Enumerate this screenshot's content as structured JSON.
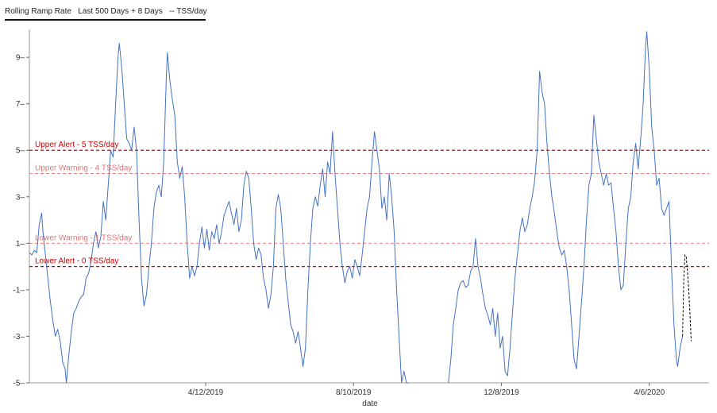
{
  "title": "Rolling Ramp Rate   Last 500 Days + 8 Days   -- TSS/day",
  "chart_data": {
    "type": "line",
    "title": "Rolling Ramp Rate   Last 500 Days + 8 Days   -- TSS/day",
    "xlabel": "date",
    "ylabel": "",
    "ylim": [
      -5,
      10.2
    ],
    "y_ticks": [
      -5,
      -3,
      -1,
      1,
      3,
      5,
      7,
      9
    ],
    "y_tick_labels": [
      "-5",
      "-3",
      "-1",
      "1",
      "3",
      "5",
      "7",
      "9"
    ],
    "x_ticks": [
      {
        "label": "4/12/2019",
        "day": 138
      },
      {
        "label": "8/10/2019",
        "day": 258
      },
      {
        "label": "12/8/2019",
        "day": 378
      },
      {
        "label": "4/6/2020",
        "day": 498
      }
    ],
    "xlim_days": [
      -5,
      513
    ],
    "grid": false,
    "thresholds": [
      {
        "name": "Upper Alert - 5 TSS/day",
        "value": 5,
        "color": "#cc0000",
        "style": "dashed-bold"
      },
      {
        "name": "Upper Warning - 4 TSS/day",
        "value": 4,
        "color": "#e57373",
        "style": "dashed"
      },
      {
        "name": "Lower Warning - 1 TSS/day",
        "value": 1,
        "color": "#e57373",
        "style": "dashed"
      },
      {
        "name": "Lower Alert - 0 TSS/day",
        "value": 0,
        "color": "#cc0000",
        "style": "dashed-bold"
      }
    ],
    "series": [
      {
        "name": "",
        "color": "#4472c4",
        "style": "solid",
        "points": [
          [
            -5,
            0.6
          ],
          [
            -3,
            0.5
          ],
          [
            -1,
            0.7
          ],
          [
            1,
            0.6
          ],
          [
            3,
            1.8
          ],
          [
            5,
            2.3
          ],
          [
            6,
            1.5
          ],
          [
            8,
            0.5
          ],
          [
            10,
            -0.5
          ],
          [
            12,
            -1.5
          ],
          [
            14,
            -2.3
          ],
          [
            16,
            -3.0
          ],
          [
            18,
            -2.7
          ],
          [
            20,
            -3.2
          ],
          [
            22,
            -4.1
          ],
          [
            24,
            -4.4
          ],
          [
            25,
            -5.0
          ],
          [
            27,
            -3.8
          ],
          [
            29,
            -2.8
          ],
          [
            31,
            -2.0
          ],
          [
            33,
            -1.8
          ],
          [
            35,
            -1.5
          ],
          [
            37,
            -1.3
          ],
          [
            39,
            -1.2
          ],
          [
            41,
            -0.5
          ],
          [
            43,
            -0.3
          ],
          [
            45,
            0.2
          ],
          [
            47,
            1.0
          ],
          [
            49,
            1.5
          ],
          [
            51,
            0.8
          ],
          [
            53,
            1.3
          ],
          [
            55,
            2.8
          ],
          [
            57,
            2.0
          ],
          [
            59,
            3.5
          ],
          [
            61,
            5.0
          ],
          [
            63,
            4.7
          ],
          [
            65,
            7.0
          ],
          [
            67,
            9.1
          ],
          [
            68,
            9.6
          ],
          [
            70,
            8.5
          ],
          [
            72,
            7.0
          ],
          [
            74,
            5.5
          ],
          [
            76,
            5.3
          ],
          [
            78,
            5.0
          ],
          [
            80,
            6.0
          ],
          [
            82,
            5.0
          ],
          [
            84,
            2.0
          ],
          [
            86,
            -0.5
          ],
          [
            88,
            -1.7
          ],
          [
            90,
            -1.2
          ],
          [
            92,
            0.0
          ],
          [
            94,
            1.0
          ],
          [
            96,
            2.5
          ],
          [
            98,
            3.2
          ],
          [
            100,
            3.5
          ],
          [
            102,
            3.0
          ],
          [
            104,
            4.5
          ],
          [
            106,
            8.0
          ],
          [
            107,
            9.2
          ],
          [
            109,
            8.0
          ],
          [
            111,
            7.2
          ],
          [
            113,
            6.5
          ],
          [
            115,
            4.5
          ],
          [
            117,
            3.8
          ],
          [
            119,
            4.3
          ],
          [
            121,
            3.0
          ],
          [
            123,
            1.0
          ],
          [
            125,
            -0.5
          ],
          [
            127,
            0.0
          ],
          [
            129,
            -0.4
          ],
          [
            131,
            0.0
          ],
          [
            133,
            1.0
          ],
          [
            135,
            1.7
          ],
          [
            137,
            0.8
          ],
          [
            139,
            1.6
          ],
          [
            141,
            0.7
          ],
          [
            143,
            1.5
          ],
          [
            145,
            1.2
          ],
          [
            147,
            1.8
          ],
          [
            149,
            1.0
          ],
          [
            151,
            1.5
          ],
          [
            153,
            2.2
          ],
          [
            155,
            2.5
          ],
          [
            157,
            2.8
          ],
          [
            159,
            2.3
          ],
          [
            161,
            1.8
          ],
          [
            163,
            2.5
          ],
          [
            165,
            1.5
          ],
          [
            167,
            2.0
          ],
          [
            169,
            3.5
          ],
          [
            171,
            4.1
          ],
          [
            173,
            3.8
          ],
          [
            175,
            2.5
          ],
          [
            177,
            1.0
          ],
          [
            179,
            0.3
          ],
          [
            181,
            0.8
          ],
          [
            183,
            0.5
          ],
          [
            185,
            -0.5
          ],
          [
            187,
            -1.0
          ],
          [
            189,
            -1.8
          ],
          [
            191,
            -1.2
          ],
          [
            193,
            0.0
          ],
          [
            195,
            2.5
          ],
          [
            197,
            3.1
          ],
          [
            199,
            2.5
          ],
          [
            201,
            1.0
          ],
          [
            203,
            -0.5
          ],
          [
            205,
            -1.5
          ],
          [
            207,
            -2.5
          ],
          [
            209,
            -2.8
          ],
          [
            211,
            -3.3
          ],
          [
            213,
            -2.8
          ],
          [
            215,
            -3.5
          ],
          [
            217,
            -4.3
          ],
          [
            219,
            -3.5
          ],
          [
            221,
            -1.0
          ],
          [
            223,
            1.0
          ],
          [
            225,
            2.5
          ],
          [
            227,
            3.0
          ],
          [
            229,
            2.6
          ],
          [
            231,
            3.5
          ],
          [
            233,
            4.2
          ],
          [
            235,
            3.0
          ],
          [
            237,
            4.5
          ],
          [
            239,
            4.0
          ],
          [
            241,
            5.8
          ],
          [
            243,
            4.0
          ],
          [
            245,
            2.5
          ],
          [
            247,
            1.0
          ],
          [
            249,
            0.0
          ],
          [
            251,
            -0.7
          ],
          [
            253,
            -0.2
          ],
          [
            255,
            0.0
          ],
          [
            257,
            -0.5
          ],
          [
            259,
            0.3
          ],
          [
            261,
            0.0
          ],
          [
            263,
            -0.4
          ],
          [
            265,
            0.5
          ],
          [
            267,
            1.5
          ],
          [
            269,
            2.5
          ],
          [
            271,
            3.0
          ],
          [
            273,
            4.5
          ],
          [
            275,
            5.8
          ],
          [
            277,
            5.0
          ],
          [
            279,
            4.2
          ],
          [
            281,
            2.5
          ],
          [
            283,
            3.0
          ],
          [
            285,
            2.0
          ],
          [
            287,
            4.0
          ],
          [
            289,
            3.0
          ],
          [
            291,
            1.5
          ],
          [
            293,
            -1.0
          ],
          [
            295,
            -3.0
          ],
          [
            297,
            -5.0
          ],
          [
            299,
            -4.5
          ],
          [
            301,
            -5.0
          ],
          [
            303,
            -5.0
          ],
          [
            335,
            -5.0
          ],
          [
            337,
            -4.0
          ],
          [
            339,
            -2.5
          ],
          [
            341,
            -1.8
          ],
          [
            343,
            -1.0
          ],
          [
            345,
            -0.7
          ],
          [
            347,
            -0.6
          ],
          [
            349,
            -0.9
          ],
          [
            351,
            -0.8
          ],
          [
            353,
            -0.2
          ],
          [
            355,
            0.0
          ],
          [
            357,
            1.2
          ],
          [
            359,
            0.0
          ],
          [
            361,
            -0.5
          ],
          [
            363,
            -1.2
          ],
          [
            365,
            -1.8
          ],
          [
            367,
            -2.1
          ],
          [
            369,
            -2.5
          ],
          [
            371,
            -1.8
          ],
          [
            373,
            -3.0
          ],
          [
            375,
            -2.0
          ],
          [
            377,
            -3.5
          ],
          [
            379,
            -3.0
          ],
          [
            381,
            -4.5
          ],
          [
            383,
            -4.7
          ],
          [
            385,
            -3.5
          ],
          [
            387,
            -2.0
          ],
          [
            389,
            -0.5
          ],
          [
            391,
            0.5
          ],
          [
            393,
            1.5
          ],
          [
            395,
            2.1
          ],
          [
            397,
            1.5
          ],
          [
            399,
            1.8
          ],
          [
            401,
            2.5
          ],
          [
            403,
            3.0
          ],
          [
            405,
            3.7
          ],
          [
            407,
            5.0
          ],
          [
            409,
            8.4
          ],
          [
            411,
            7.5
          ],
          [
            413,
            7.0
          ],
          [
            415,
            5.3
          ],
          [
            417,
            4.0
          ],
          [
            419,
            3.0
          ],
          [
            421,
            2.3
          ],
          [
            423,
            1.5
          ],
          [
            425,
            0.8
          ],
          [
            427,
            0.5
          ],
          [
            429,
            0.7
          ],
          [
            431,
            0.0
          ],
          [
            433,
            -1.0
          ],
          [
            435,
            -2.5
          ],
          [
            437,
            -4.0
          ],
          [
            439,
            -4.4
          ],
          [
            441,
            -3.0
          ],
          [
            443,
            -1.5
          ],
          [
            445,
            0.0
          ],
          [
            447,
            2.0
          ],
          [
            449,
            3.5
          ],
          [
            451,
            4.0
          ],
          [
            453,
            6.5
          ],
          [
            455,
            5.5
          ],
          [
            457,
            4.5
          ],
          [
            459,
            4.0
          ],
          [
            461,
            3.5
          ],
          [
            463,
            4.0
          ],
          [
            465,
            3.5
          ],
          [
            467,
            3.6
          ],
          [
            469,
            2.5
          ],
          [
            471,
            1.5
          ],
          [
            473,
            0.0
          ],
          [
            475,
            -1.0
          ],
          [
            477,
            -0.8
          ],
          [
            479,
            1.0
          ],
          [
            481,
            2.5
          ],
          [
            483,
            3.0
          ],
          [
            485,
            4.5
          ],
          [
            487,
            5.3
          ],
          [
            489,
            4.2
          ],
          [
            491,
            5.5
          ],
          [
            493,
            7.0
          ],
          [
            495,
            9.5
          ],
          [
            496,
            10.1
          ],
          [
            498,
            8.5
          ],
          [
            500,
            6.0
          ],
          [
            502,
            5.0
          ],
          [
            504,
            3.5
          ],
          [
            506,
            3.8
          ],
          [
            508,
            2.5
          ],
          [
            510,
            2.2
          ],
          [
            512,
            2.5
          ],
          [
            514,
            2.8
          ],
          [
            516,
            0.0
          ],
          [
            518,
            -2.5
          ],
          [
            520,
            -4.0
          ],
          [
            521,
            -4.3
          ],
          [
            523,
            -3.5
          ],
          [
            525,
            -3.0
          ]
        ]
      },
      {
        "name": "",
        "color": "#000000",
        "style": "dashed",
        "points": [
          [
            525,
            -3.0
          ],
          [
            526,
            -0.5
          ],
          [
            527,
            0.5
          ],
          [
            528,
            0.4
          ],
          [
            529,
            -0.2
          ],
          [
            530,
            -1.0
          ],
          [
            531,
            -2.0
          ],
          [
            532,
            -3.2
          ]
        ]
      }
    ]
  }
}
